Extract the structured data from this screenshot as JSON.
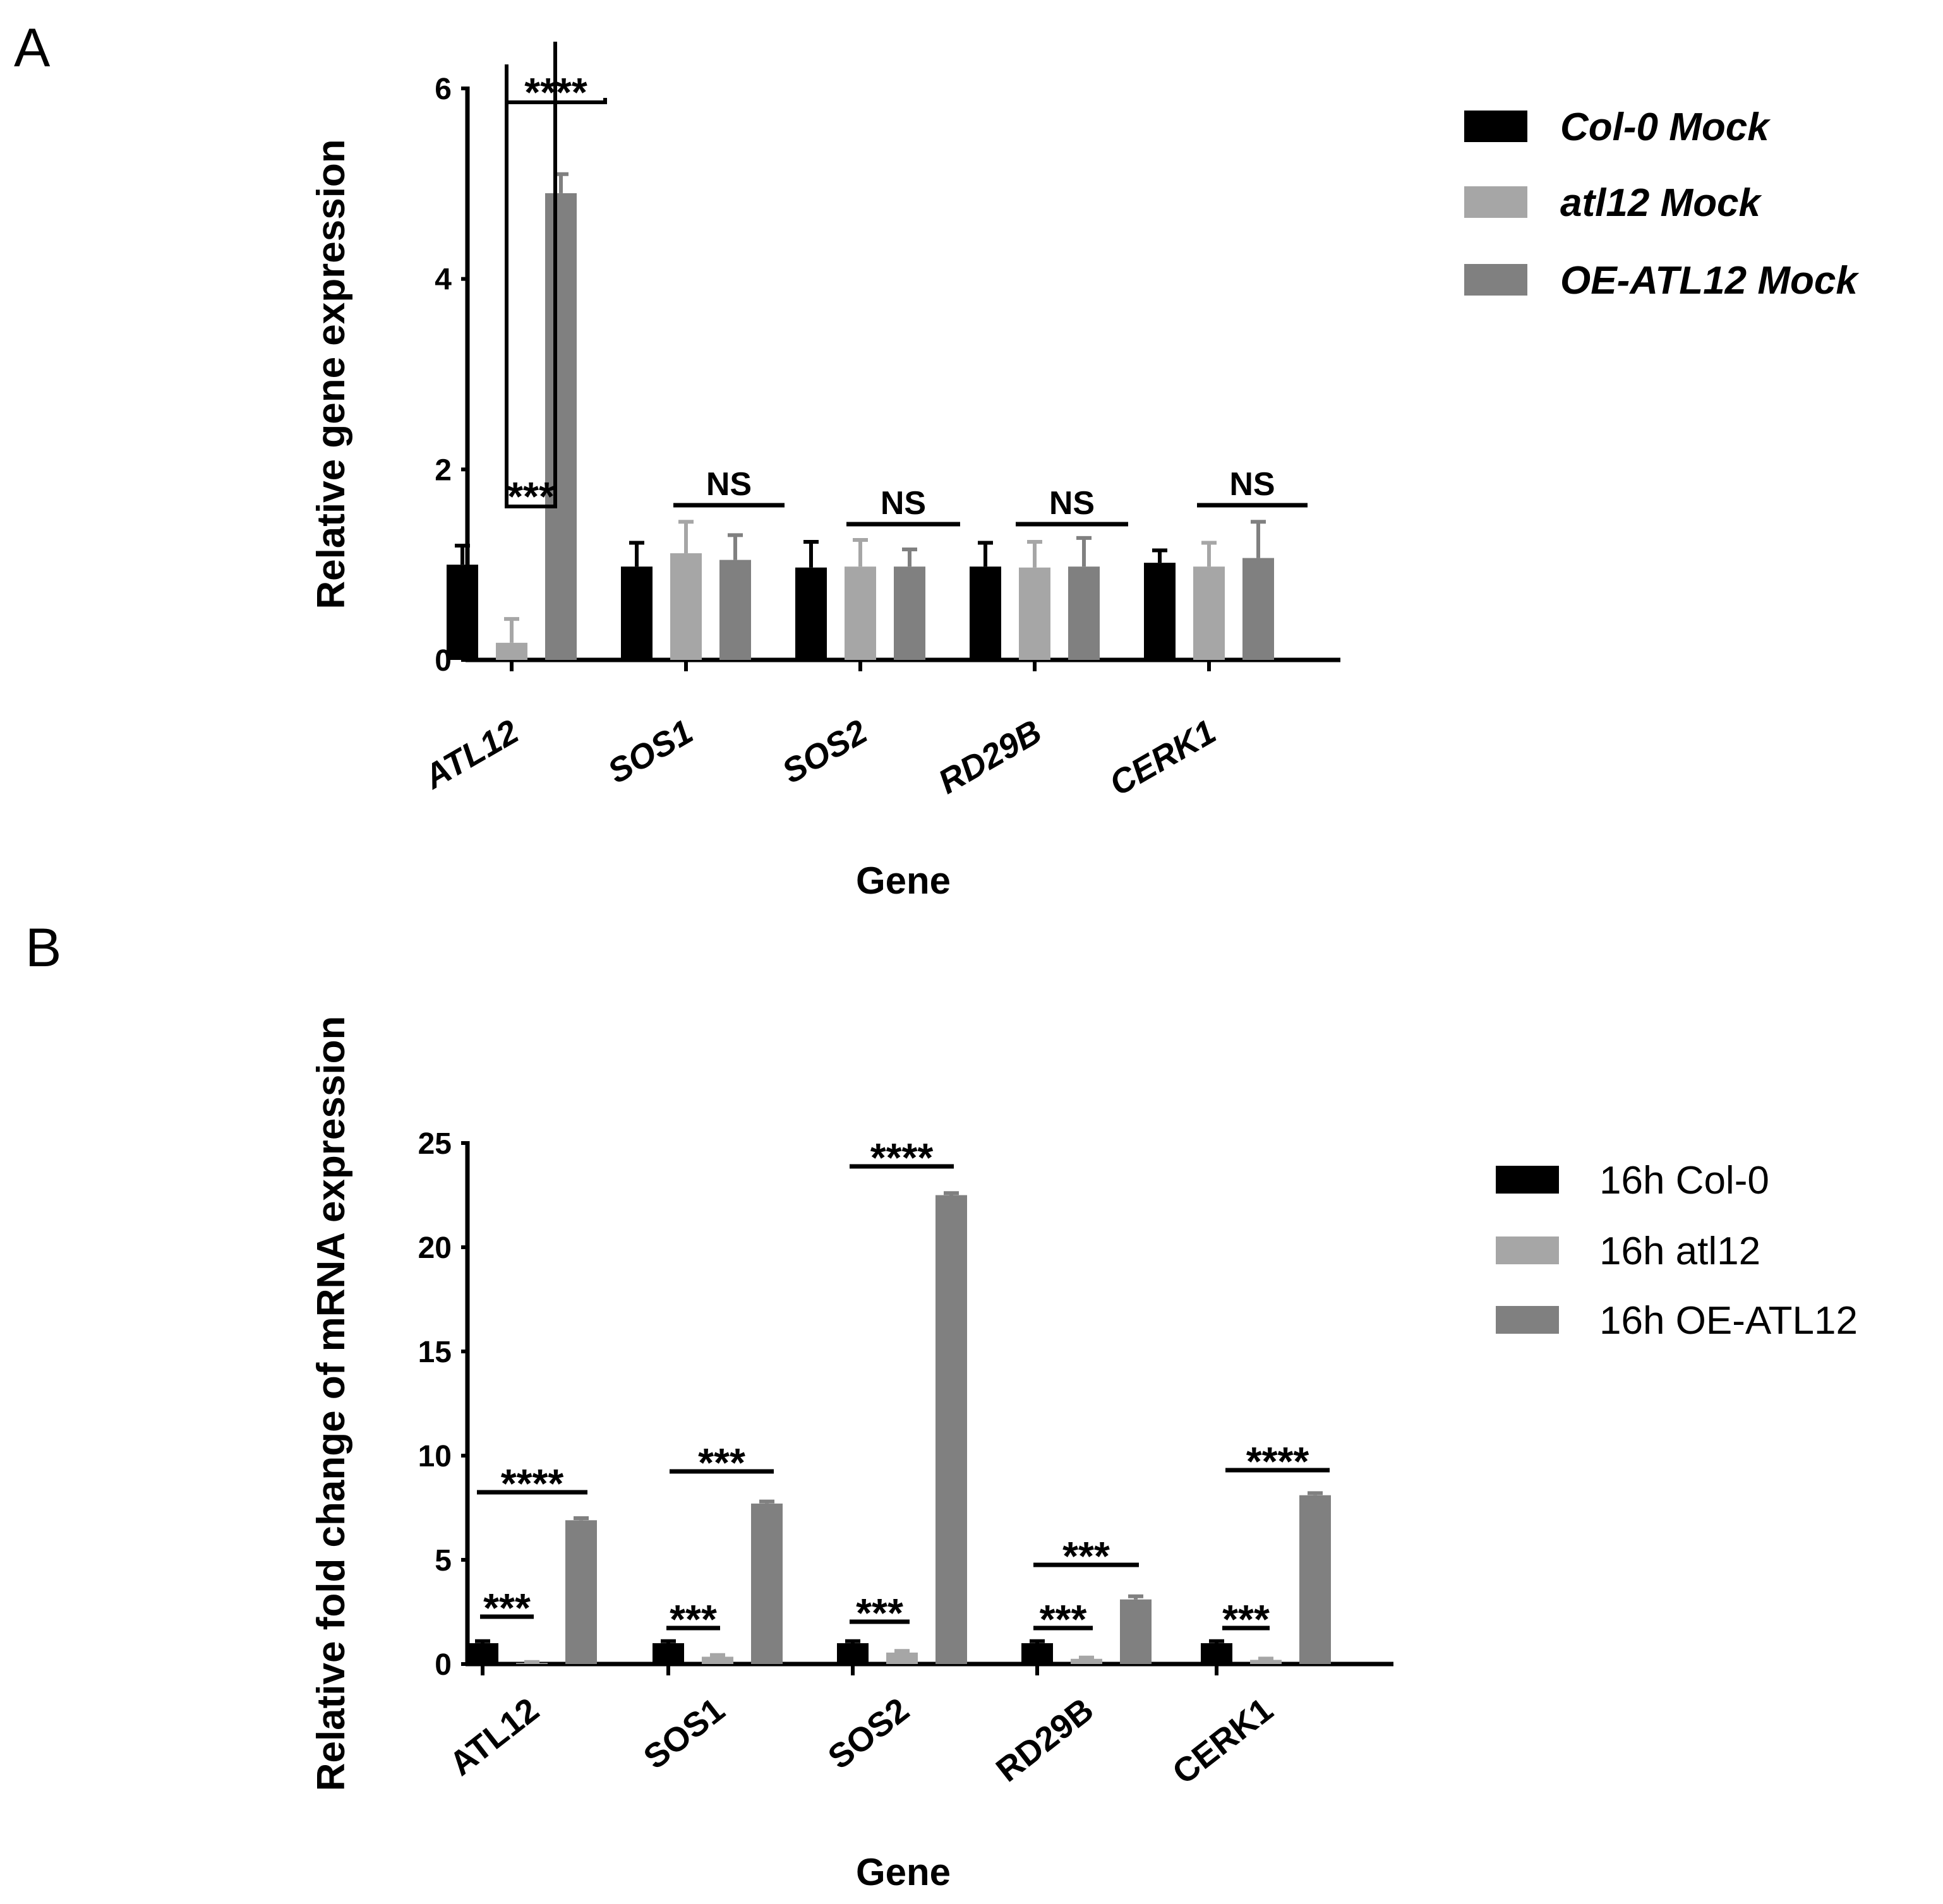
{
  "panels": {
    "a": {
      "label": "A"
    },
    "b": {
      "label": "B"
    }
  },
  "colors": {
    "col0": "#000000",
    "atl12": "#a6a6a6",
    "oe": "#808080"
  },
  "chart_data": [
    {
      "type": "bar",
      "panel": "A",
      "title": "",
      "xlabel": "Gene",
      "ylabel": "Relative gene expression",
      "ylim": [
        0,
        6
      ],
      "yticks": [
        "0",
        "2",
        "4",
        "6"
      ],
      "categories": [
        "ATL12",
        "SOS1",
        "SOS2",
        "RD29B",
        "CERK1"
      ],
      "series": [
        {
          "name": "Col-0 Mock",
          "values": [
            1.0,
            0.98,
            0.97,
            0.98,
            1.02
          ],
          "errors": [
            0.2,
            0.25,
            0.27,
            0.25,
            0.13
          ]
        },
        {
          "name": "atl12 Mock",
          "values": [
            0.18,
            1.12,
            0.98,
            0.97,
            0.98
          ],
          "errors": [
            0.25,
            0.33,
            0.28,
            0.27,
            0.25
          ]
        },
        {
          "name": "OE-ATL12 Mock",
          "values": [
            4.9,
            1.05,
            0.98,
            0.98,
            1.07
          ],
          "errors": [
            0.2,
            0.26,
            0.18,
            0.3,
            0.38
          ]
        }
      ],
      "legend": "top-right",
      "annotations": [
        {
          "text": "****",
          "category": "ATL12",
          "pair": [
            "Col-0 Mock",
            "OE-ATL12 Mock"
          ]
        },
        {
          "text": "***",
          "category": "ATL12",
          "pair": [
            "Col-0 Mock",
            "atl12 Mock"
          ]
        },
        {
          "text": "NS",
          "category": "SOS1"
        },
        {
          "text": "NS",
          "category": "SOS2"
        },
        {
          "text": "NS",
          "category": "RD29B"
        },
        {
          "text": "NS",
          "category": "CERK1"
        }
      ]
    },
    {
      "type": "bar",
      "panel": "B",
      "title": "",
      "xlabel": "Gene",
      "ylabel": "Relative fold change of mRNA expression",
      "ylim": [
        0,
        25
      ],
      "yticks": [
        "0",
        "5",
        "10",
        "15",
        "20",
        "25"
      ],
      "categories": [
        "ATL12",
        "SOS1",
        "SOS2",
        "RD29B",
        "CERK1"
      ],
      "series": [
        {
          "name": "16h Col-0",
          "values": [
            1.0,
            1.0,
            1.0,
            1.0,
            1.0
          ],
          "errors": [
            0.1,
            0.1,
            0.1,
            0.1,
            0.1
          ]
        },
        {
          "name": "16h atl12",
          "values": [
            0.05,
            0.35,
            0.55,
            0.25,
            0.2
          ],
          "errors": [
            0.05,
            0.08,
            0.08,
            0.06,
            0.06
          ]
        },
        {
          "name": "16h OE-ATL12",
          "values": [
            6.9,
            7.7,
            22.5,
            3.1,
            8.1
          ],
          "errors": [
            0.1,
            0.1,
            0.1,
            0.15,
            0.1
          ]
        }
      ],
      "legend": "top-right",
      "annotations": [
        {
          "text": "****",
          "category": "ATL12",
          "pair": [
            "16h Col-0",
            "16h OE-ATL12"
          ]
        },
        {
          "text": "***",
          "category": "ATL12",
          "pair": [
            "16h Col-0",
            "16h atl12"
          ]
        },
        {
          "text": "***",
          "category": "SOS1",
          "pair": [
            "16h Col-0",
            "16h OE-ATL12"
          ]
        },
        {
          "text": "***",
          "category": "SOS1",
          "pair": [
            "16h Col-0",
            "16h atl12"
          ]
        },
        {
          "text": "****",
          "category": "SOS2",
          "pair": [
            "16h Col-0",
            "16h OE-ATL12"
          ]
        },
        {
          "text": "***",
          "category": "SOS2",
          "pair": [
            "16h Col-0",
            "16h atl12"
          ]
        },
        {
          "text": "***",
          "category": "RD29B",
          "pair": [
            "16h Col-0",
            "16h OE-ATL12"
          ]
        },
        {
          "text": "***",
          "category": "RD29B",
          "pair": [
            "16h Col-0",
            "16h atl12"
          ]
        },
        {
          "text": "****",
          "category": "CERK1",
          "pair": [
            "16h Col-0",
            "16h OE-ATL12"
          ]
        },
        {
          "text": "***",
          "category": "CERK1",
          "pair": [
            "16h Col-0",
            "16h atl12"
          ]
        }
      ]
    }
  ]
}
